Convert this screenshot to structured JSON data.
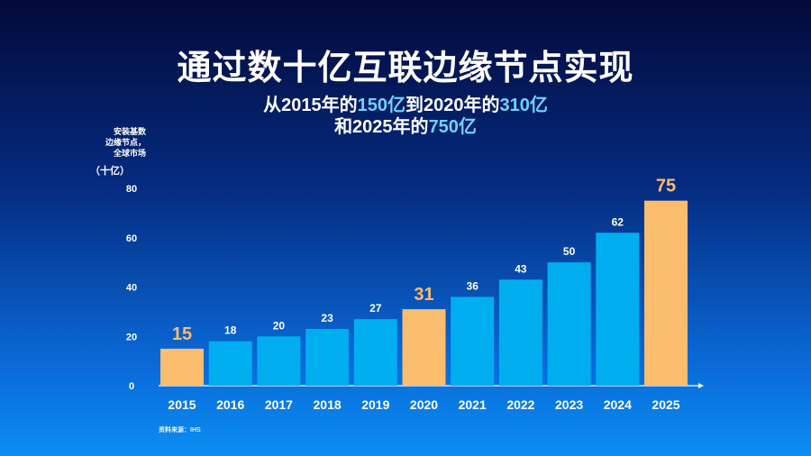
{
  "title": "通过数十亿互联边缘节点实现",
  "subtitle_line1": {
    "pre": "从2015年的",
    "v1": "150亿",
    "mid": "到2020年的",
    "v2": "310亿"
  },
  "subtitle_line2": {
    "pre": "和2025年的",
    "v1": "750亿"
  },
  "ylabel": {
    "line1": "安装基数",
    "line2": "边缘节点，",
    "line3": "全球市场",
    "unit": "（十亿）"
  },
  "source": "资料来源：IHS",
  "colors": {
    "bar": "#00aef0",
    "highlight": "#f9bd6d"
  },
  "chart_data": {
    "type": "bar",
    "title": "通过数十亿互联边缘节点实现",
    "ylabel": "安装基数 边缘节点，全球市场（十亿）",
    "xlabel": "",
    "categories": [
      "2015",
      "2016",
      "2017",
      "2018",
      "2019",
      "2020",
      "2021",
      "2022",
      "2023",
      "2024",
      "2025"
    ],
    "values": [
      15,
      18,
      20,
      23,
      27,
      31,
      36,
      43,
      50,
      62,
      75
    ],
    "labels": [
      "15",
      "18",
      "20",
      "23",
      "27",
      "31",
      "36",
      "43",
      "50",
      "62",
      "75"
    ],
    "highlighted": [
      "2015",
      "2020",
      "2025"
    ],
    "yticks": [
      0,
      20,
      40,
      60,
      80
    ],
    "ylim": [
      0,
      80
    ],
    "grid": false
  }
}
